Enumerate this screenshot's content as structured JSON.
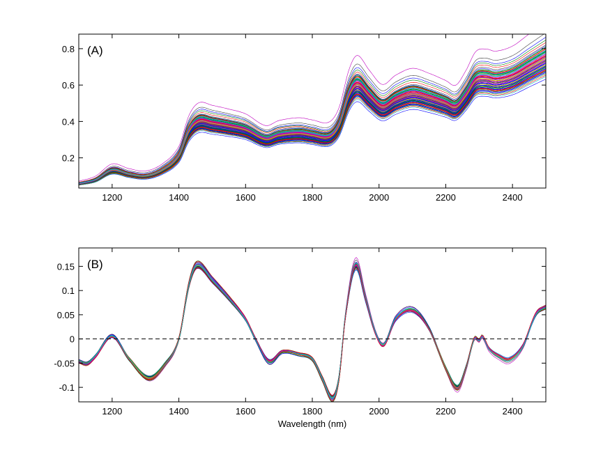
{
  "chart_data": [
    {
      "type": "line",
      "panel_label": "(A)",
      "xlabel": "",
      "ylabel": "",
      "xlim": [
        1100,
        2500
      ],
      "ylim": [
        0.034,
        0.88
      ],
      "xticks": [
        1200,
        1400,
        1600,
        1800,
        2000,
        2200,
        2400
      ],
      "xtick_labels": [
        "1200",
        "1400",
        "1600",
        "1800",
        "2000",
        "2200",
        "2400"
      ],
      "yticks": [
        0.2,
        0.4,
        0.6,
        0.8
      ],
      "ytick_labels": [
        "0.2",
        "0.4",
        "0.6",
        "0.8"
      ],
      "description_series": "NIR absorbance spectra, many samples; mean curve scaled per sample",
      "mean_curve": {
        "x": [
          1100,
          1150,
          1200,
          1250,
          1300,
          1350,
          1400,
          1430,
          1460,
          1500,
          1550,
          1600,
          1660,
          1700,
          1760,
          1800,
          1850,
          1880,
          1910,
          1935,
          1970,
          2010,
          2050,
          2100,
          2150,
          2200,
          2230,
          2260,
          2290,
          2320,
          2350,
          2400,
          2450,
          2500
        ],
        "y": [
          0.055,
          0.075,
          0.125,
          0.105,
          0.095,
          0.125,
          0.2,
          0.33,
          0.385,
          0.375,
          0.36,
          0.34,
          0.29,
          0.31,
          0.32,
          0.31,
          0.3,
          0.36,
          0.52,
          0.58,
          0.52,
          0.46,
          0.5,
          0.53,
          0.51,
          0.48,
          0.46,
          0.52,
          0.6,
          0.61,
          0.6,
          0.62,
          0.67,
          0.72
        ]
      },
      "sample_scales": [
        0.88,
        0.9,
        0.91,
        0.92,
        0.93,
        0.94,
        0.95,
        0.95,
        0.96,
        0.96,
        0.97,
        0.97,
        0.98,
        0.98,
        0.99,
        0.99,
        1.0,
        1.0,
        1.0,
        1.01,
        1.01,
        1.02,
        1.02,
        1.03,
        1.03,
        1.04,
        1.04,
        1.05,
        1.05,
        1.06,
        1.06,
        1.07,
        1.08,
        1.08,
        1.09,
        1.1,
        1.1,
        1.11,
        1.12,
        1.13,
        1.14,
        1.16,
        1.18,
        1.2,
        1.23,
        1.31
      ]
    },
    {
      "type": "line",
      "panel_label": "(B)",
      "xlabel": "Wavelength (nm)",
      "ylabel": "",
      "xlim": [
        1100,
        2500
      ],
      "ylim": [
        -0.13,
        0.188
      ],
      "xticks": [
        1200,
        1400,
        1600,
        1800,
        2000,
        2200,
        2400
      ],
      "xtick_labels": [
        "1200",
        "1400",
        "1600",
        "1800",
        "2000",
        "2200",
        "2400"
      ],
      "yticks": [
        -0.1,
        -0.05,
        0,
        0.05,
        0.1,
        0.15
      ],
      "ytick_labels": [
        "-0.1",
        "-0.05",
        "0",
        "0.05",
        "0.1",
        "0.15"
      ],
      "reference_line": 0,
      "description_series": "Preprocessed (derivative) spectra, many samples; mean curve scaled per sample",
      "mean_curve": {
        "x": [
          1100,
          1125,
          1150,
          1200,
          1250,
          1310,
          1360,
          1400,
          1430,
          1455,
          1500,
          1560,
          1600,
          1630,
          1670,
          1710,
          1760,
          1800,
          1830,
          1860,
          1880,
          1900,
          1930,
          1960,
          1990,
          2015,
          2050,
          2100,
          2150,
          2200,
          2235,
          2260,
          2285,
          2300,
          2310,
          2330,
          2360,
          2390,
          2430,
          2470,
          2500
        ],
        "y": [
          -0.045,
          -0.05,
          -0.035,
          0.005,
          -0.04,
          -0.08,
          -0.05,
          0,
          0.11,
          0.15,
          0.12,
          0.075,
          0.04,
          0,
          -0.045,
          -0.025,
          -0.03,
          -0.04,
          -0.08,
          -0.12,
          -0.08,
          0.05,
          0.15,
          0.08,
          0.01,
          -0.012,
          0.04,
          0.058,
          0.02,
          -0.06,
          -0.1,
          -0.06,
          0,
          -0.003,
          0.005,
          -0.02,
          -0.035,
          -0.042,
          -0.015,
          0.05,
          0.065
        ]
      },
      "sample_scales": [
        0.88,
        0.9,
        0.91,
        0.92,
        0.93,
        0.94,
        0.95,
        0.95,
        0.96,
        0.96,
        0.97,
        0.97,
        0.98,
        0.98,
        0.99,
        0.99,
        1.0,
        1.0,
        1.0,
        1.01,
        1.01,
        1.02,
        1.02,
        1.03,
        1.03,
        1.04,
        1.04,
        1.05,
        1.05,
        1.06,
        1.06,
        1.07,
        1.08,
        1.08,
        1.09,
        1.1,
        1.1,
        1.11,
        1.12,
        1.13,
        1.14,
        1.16,
        1.18,
        1.2,
        1.23,
        1.28
      ]
    }
  ],
  "colors": [
    "#0000ff",
    "#008000",
    "#ff0000",
    "#00bfbf",
    "#bf00bf",
    "#bfbf00",
    "#404040"
  ]
}
